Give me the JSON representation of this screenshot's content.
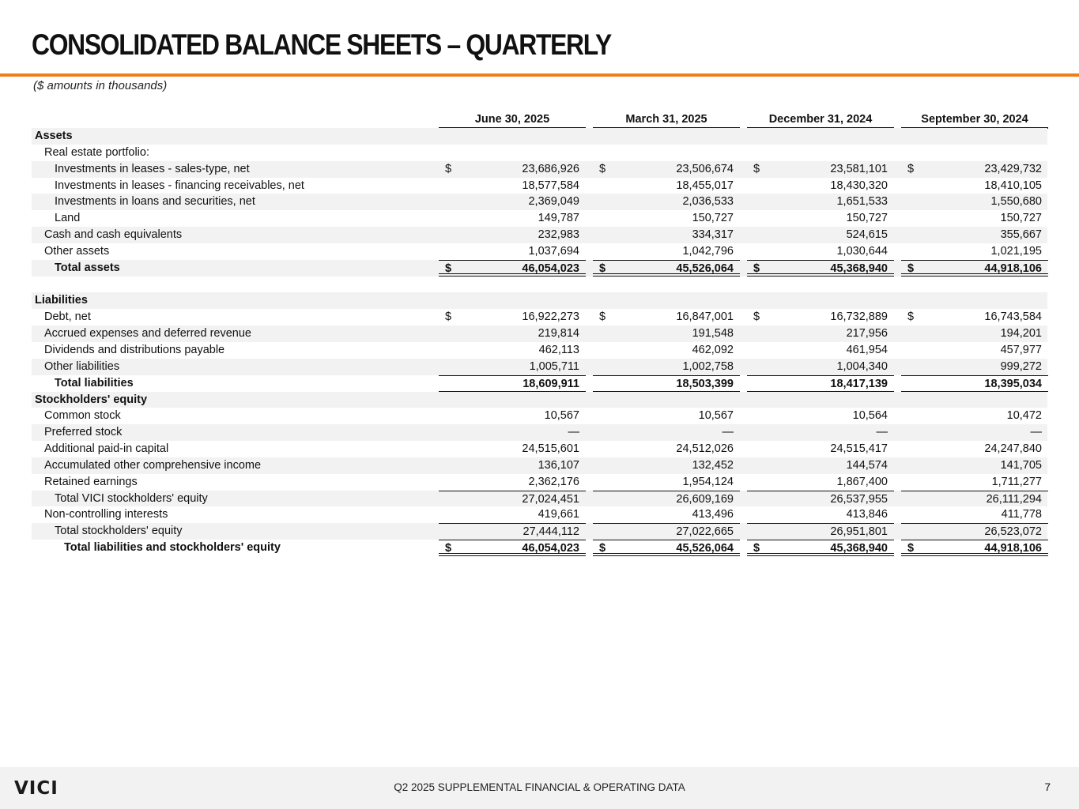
{
  "title": "CONSOLIDATED BALANCE SHEETS – QUARTERLY",
  "subtitle": "($ amounts in thousands)",
  "columns": [
    "June 30, 2025",
    "March 31, 2025",
    "December 31, 2024",
    "September 30, 2024"
  ],
  "accent_color": "#f07c1c",
  "rows": [
    {
      "label": "Assets",
      "indent": 0,
      "bold": true,
      "values": []
    },
    {
      "label": "Real estate portfolio:",
      "indent": 1,
      "values": []
    },
    {
      "label": "Investments in leases - sales-type, net",
      "indent": 2,
      "dollar": true,
      "values": [
        "23,686,926",
        "23,506,674",
        "23,581,101",
        "23,429,732"
      ]
    },
    {
      "label": "Investments in leases - financing receivables, net",
      "indent": 2,
      "values": [
        "18,577,584",
        "18,455,017",
        "18,430,320",
        "18,410,105"
      ]
    },
    {
      "label": "Investments in loans and securities, net",
      "indent": 2,
      "values": [
        "2,369,049",
        "2,036,533",
        "1,651,533",
        "1,550,680"
      ]
    },
    {
      "label": "Land",
      "indent": 2,
      "values": [
        "149,787",
        "150,727",
        "150,727",
        "150,727"
      ]
    },
    {
      "label": "Cash and cash equivalents",
      "indent": 1,
      "values": [
        "232,983",
        "334,317",
        "524,615",
        "355,667"
      ]
    },
    {
      "label": "Other assets",
      "indent": 1,
      "values": [
        "1,037,694",
        "1,042,796",
        "1,030,644",
        "1,021,195"
      ]
    },
    {
      "label": "Total assets",
      "indent": 2,
      "bold": true,
      "dollar": true,
      "top": true,
      "double": true,
      "values": [
        "46,054,023",
        "45,526,064",
        "45,368,940",
        "44,918,106"
      ]
    },
    {
      "label": "",
      "indent": 0,
      "values": []
    },
    {
      "label": "Liabilities",
      "indent": 0,
      "bold": true,
      "values": []
    },
    {
      "label": "Debt, net",
      "indent": 1,
      "dollar": true,
      "values": [
        "16,922,273",
        "16,847,001",
        "16,732,889",
        "16,743,584"
      ]
    },
    {
      "label": "Accrued expenses and deferred revenue",
      "indent": 1,
      "values": [
        "219,814",
        "191,548",
        "217,956",
        "194,201"
      ]
    },
    {
      "label": "Dividends and distributions payable",
      "indent": 1,
      "values": [
        "462,113",
        "462,092",
        "461,954",
        "457,977"
      ]
    },
    {
      "label": "Other liabilities",
      "indent": 1,
      "values": [
        "1,005,711",
        "1,002,758",
        "1,004,340",
        "999,272"
      ]
    },
    {
      "label": "Total liabilities",
      "indent": 2,
      "bold": true,
      "top": true,
      "bottom": true,
      "values": [
        "18,609,911",
        "18,503,399",
        "18,417,139",
        "18,395,034"
      ]
    },
    {
      "label": "Stockholders' equity",
      "indent": 0,
      "bold": true,
      "values": []
    },
    {
      "label": "Common stock",
      "indent": 1,
      "values": [
        "10,567",
        "10,567",
        "10,564",
        "10,472"
      ]
    },
    {
      "label": "Preferred stock",
      "indent": 1,
      "values": [
        "—",
        "—",
        "—",
        "—"
      ]
    },
    {
      "label": "Additional paid-in capital",
      "indent": 1,
      "values": [
        "24,515,601",
        "24,512,026",
        "24,515,417",
        "24,247,840"
      ]
    },
    {
      "label": "Accumulated other comprehensive income",
      "indent": 1,
      "values": [
        "136,107",
        "132,452",
        "144,574",
        "141,705"
      ]
    },
    {
      "label": "Retained earnings",
      "indent": 1,
      "values": [
        "2,362,176",
        "1,954,124",
        "1,867,400",
        "1,711,277"
      ]
    },
    {
      "label": "Total VICI stockholders' equity",
      "indent": 2,
      "top": true,
      "values": [
        "27,024,451",
        "26,609,169",
        "26,537,955",
        "26,111,294"
      ]
    },
    {
      "label": "Non-controlling interests",
      "indent": 1,
      "values": [
        "419,661",
        "413,496",
        "413,846",
        "411,778"
      ]
    },
    {
      "label": "Total stockholders' equity",
      "indent": 2,
      "top": true,
      "values": [
        "27,444,112",
        "27,022,665",
        "26,951,801",
        "26,523,072"
      ]
    },
    {
      "label": "Total liabilities and stockholders' equity",
      "indent": 3,
      "bold": true,
      "dollar": true,
      "top": true,
      "double": true,
      "values": [
        "46,054,023",
        "45,526,064",
        "45,368,940",
        "44,918,106"
      ]
    }
  ],
  "footer": {
    "logo": "VICI",
    "text": "Q2 2025 SUPPLEMENTAL FINANCIAL & OPERATING DATA",
    "page": "7"
  }
}
